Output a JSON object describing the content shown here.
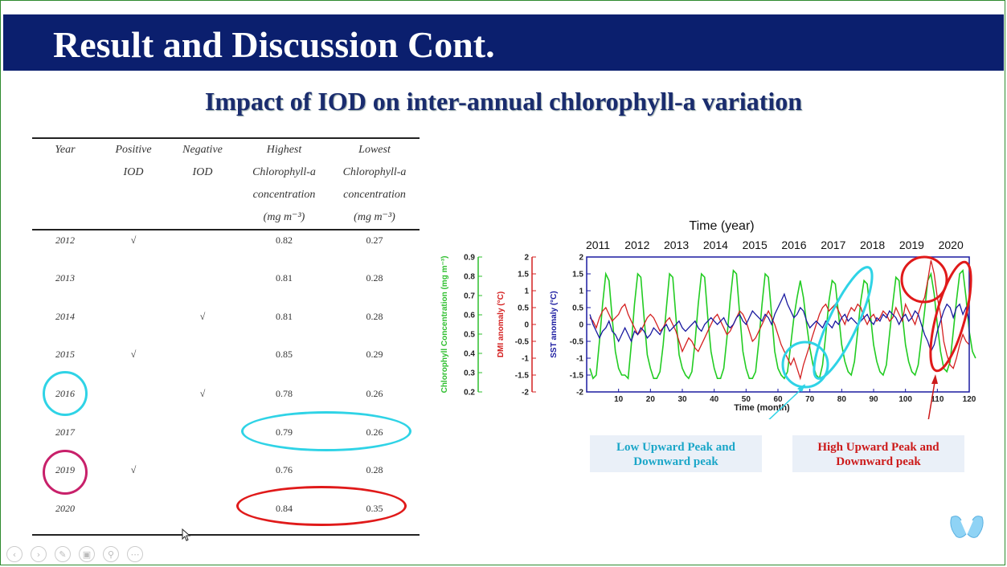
{
  "title": "Result and Discussion Cont.",
  "subtitle": "Impact of IOD on inter-annual chlorophyll-a variation",
  "table": {
    "headers": [
      [
        "Year"
      ],
      [
        "Positive",
        "IOD"
      ],
      [
        "Negative",
        "IOD"
      ],
      [
        "Highest",
        "Chlorophyll-a",
        "concentration",
        "(mg m⁻³)"
      ],
      [
        "Lowest",
        "Chlorophyll-a",
        "concentration",
        "(mg m⁻³)"
      ]
    ],
    "rows": [
      {
        "year": "2012",
        "positive": "√",
        "negative": "",
        "highest": "0.82",
        "lowest": "0.27"
      },
      {
        "year": "2013",
        "positive": "",
        "negative": "",
        "highest": "0.81",
        "lowest": "0.28"
      },
      {
        "year": "2014",
        "positive": "",
        "negative": "√",
        "highest": "0.81",
        "lowest": "0.28"
      },
      {
        "year": "2015",
        "positive": "√",
        "negative": "",
        "highest": "0.85",
        "lowest": "0.29"
      },
      {
        "year": "2016",
        "positive": "",
        "negative": "√",
        "highest": "0.78",
        "lowest": "0.26"
      },
      {
        "year": "2017",
        "positive": "",
        "negative": "",
        "highest": "0.79",
        "lowest": "0.26"
      },
      {
        "year": "2019",
        "positive": "√",
        "negative": "",
        "highest": "0.76",
        "lowest": "0.28"
      },
      {
        "year": "2020",
        "positive": "",
        "negative": "",
        "highest": "0.84",
        "lowest": "0.35"
      }
    ]
  },
  "chart_data": {
    "type": "line",
    "title": "",
    "top_axis_label": "Time (year)",
    "top_ticks": [
      "2011",
      "2012",
      "2013",
      "2014",
      "2015",
      "2016",
      "2017",
      "2018",
      "2019",
      "2020"
    ],
    "xlabel": "Time (month)",
    "xlim": [
      0,
      120
    ],
    "x_ticks": [
      10,
      20,
      30,
      40,
      50,
      60,
      70,
      80,
      90,
      100,
      110,
      120
    ],
    "axes": [
      {
        "label": "Chlorophyll Concentration (mg m⁻³)",
        "ylim": [
          0.2,
          0.9
        ],
        "ticks": [
          "0.2",
          "0.3",
          "0.4",
          "0.5",
          "0.6",
          "0.7",
          "0.8",
          "0.9"
        ],
        "color": "#2fbf2f"
      },
      {
        "label": "DMI anomaly (°C)",
        "ylim": [
          -2,
          2
        ],
        "ticks": [
          "-2",
          "-1.5",
          "-1",
          "-0.5",
          "0",
          "0.5",
          "1",
          "1.5",
          "2"
        ],
        "color": "#d42020"
      },
      {
        "label": "SST anomaly (°C)",
        "ylim": [
          -2,
          2
        ],
        "ticks": [
          "-2",
          "-1.5",
          "-1",
          "-0.5",
          "0",
          "0.5",
          "1",
          "1.5",
          "2"
        ],
        "color": "#1a1aa0"
      }
    ],
    "series": [
      {
        "name": "",
        "color": "#22cc22",
        "axis": 2,
        "values": [
          -1.3,
          -1.6,
          -1.5,
          -0.5,
          0.6,
          1.5,
          1.3,
          0.2,
          -0.8,
          -1.3,
          -1.5,
          -1.5,
          -1.6,
          -0.6,
          0.6,
          1.5,
          1.4,
          0.2,
          -0.9,
          -1.3,
          -1.6,
          -1.6,
          -1.4,
          -0.6,
          0.5,
          1.5,
          1.4,
          0.2,
          -0.9,
          -1.3,
          -1.5,
          -1.6,
          -1.4,
          -0.5,
          0.6,
          1.5,
          1.4,
          0.2,
          -0.8,
          -1.3,
          -1.6,
          -1.6,
          -1.3,
          -0.4,
          0.7,
          1.6,
          1.5,
          0.3,
          -0.8,
          -1.3,
          -1.6,
          -1.6,
          -1.4,
          -0.5,
          0.6,
          1.5,
          1.4,
          0.3,
          -0.8,
          -1.3,
          -1.5,
          -1.6,
          -1.4,
          -0.6,
          0.2,
          0.8,
          1.3,
          0.8,
          0.0,
          -0.7,
          -1.2,
          -1.5,
          -1.6,
          -1.2,
          -0.3,
          0.7,
          1.3,
          1.2,
          0.3,
          -0.6,
          -1.1,
          -1.4,
          -1.5,
          -1.1,
          -0.2,
          0.7,
          1.3,
          1.2,
          0.3,
          -0.6,
          -1.1,
          -1.4,
          -1.5,
          -1.2,
          -0.3,
          0.6,
          1.4,
          1.3,
          0.3,
          -0.6,
          -1.1,
          -1.4,
          -1.5,
          -1.2,
          -0.4,
          0.4,
          1.3,
          1.5,
          0.9,
          0.0,
          -0.8,
          -1.3,
          -1.4,
          -1.1,
          -0.2,
          0.7,
          1.5,
          1.6,
          0.8,
          -0.2,
          -0.8,
          -1.0
        ]
      },
      {
        "name": "",
        "color": "#d42020",
        "axis": 1,
        "values": [
          0.2,
          0.1,
          -0.1,
          0.2,
          0.4,
          0.5,
          0.3,
          0.1,
          0.2,
          0.3,
          0.5,
          0.6,
          0.3,
          0.1,
          -0.1,
          -0.3,
          -0.2,
          0.0,
          0.2,
          0.3,
          0.2,
          0.0,
          -0.2,
          -0.1,
          0.1,
          0.2,
          0.0,
          -0.2,
          -0.5,
          -0.8,
          -0.6,
          -0.4,
          -0.5,
          -0.7,
          -0.8,
          -0.6,
          -0.4,
          -0.2,
          0.0,
          0.2,
          0.3,
          0.1,
          -0.1,
          -0.3,
          -0.2,
          0.0,
          0.2,
          0.4,
          0.3,
          0.1,
          -0.2,
          -0.5,
          -0.4,
          -0.2,
          0.0,
          0.2,
          0.4,
          0.2,
          0.0,
          -0.3,
          -0.6,
          -0.8,
          -1.0,
          -1.2,
          -1.0,
          -1.3,
          -1.6,
          -1.2,
          -0.9,
          -0.6,
          -0.3,
          0.0,
          0.3,
          0.5,
          0.6,
          0.4,
          0.5,
          0.6,
          0.4,
          0.2,
          0.0,
          0.3,
          0.5,
          0.4,
          0.6,
          0.5,
          0.2,
          0.0,
          0.2,
          0.3,
          0.1,
          0.2,
          0.4,
          0.3,
          0.1,
          0.2,
          0.5,
          0.3,
          0.1,
          0.6,
          0.4,
          0.2,
          0.0,
          0.3,
          0.6,
          0.8,
          1.3,
          1.9,
          1.5,
          0.8,
          0.3,
          -0.5,
          -0.9,
          -1.2,
          -1.3,
          -1.0,
          -0.6,
          -0.3,
          -0.5,
          -0.6
        ]
      },
      {
        "name": "",
        "color": "#1a1aa0",
        "axis": 2,
        "values": [
          0.3,
          0.0,
          -0.2,
          -0.4,
          -0.2,
          -0.1,
          0.1,
          -0.2,
          -0.3,
          -0.5,
          -0.3,
          -0.1,
          -0.3,
          -0.5,
          -0.2,
          -0.3,
          -0.1,
          -0.2,
          -0.4,
          -0.3,
          -0.1,
          -0.2,
          -0.3,
          -0.1,
          0.0,
          -0.2,
          -0.1,
          0.0,
          0.1,
          -0.1,
          -0.2,
          -0.1,
          0.0,
          0.1,
          -0.1,
          -0.2,
          0.0,
          0.1,
          0.2,
          0.1,
          0.0,
          0.1,
          0.2,
          0.0,
          -0.1,
          0.0,
          0.2,
          0.3,
          0.1,
          0.0,
          0.2,
          0.4,
          0.3,
          0.2,
          0.1,
          0.3,
          0.2,
          0.0,
          0.3,
          0.5,
          0.7,
          0.9,
          0.6,
          0.4,
          0.2,
          0.3,
          0.5,
          0.4,
          0.1,
          -0.1,
          0.0,
          0.1,
          0.0,
          -0.1,
          0.1,
          0.0,
          -0.1,
          0.1,
          0.0,
          0.2,
          0.3,
          0.1,
          0.2,
          0.1,
          0.0,
          0.1,
          0.2,
          0.3,
          0.1,
          0.0,
          0.2,
          0.1,
          0.3,
          0.2,
          0.4,
          0.3,
          0.2,
          0.0,
          0.2,
          0.3,
          0.1,
          0.2,
          0.4,
          0.3,
          0.0,
          -0.3,
          -0.5,
          -0.8,
          -0.6,
          -0.2,
          0.1,
          0.4,
          0.6,
          0.5,
          0.2,
          0.5,
          0.6,
          0.3,
          0.5,
          0.1
        ]
      }
    ]
  },
  "notes": {
    "low": {
      "line1": "Low Upward Peak and",
      "line2": "Downward peak",
      "color": "#1aa6c8"
    },
    "high": {
      "line1": "High Upward Peak and",
      "line2": "Downward peak",
      "color": "#cc1a1a"
    }
  },
  "highlight_colors": {
    "cyan": "#2fd3e6",
    "magenta": "#c8206a",
    "red": "#e01a1a"
  }
}
